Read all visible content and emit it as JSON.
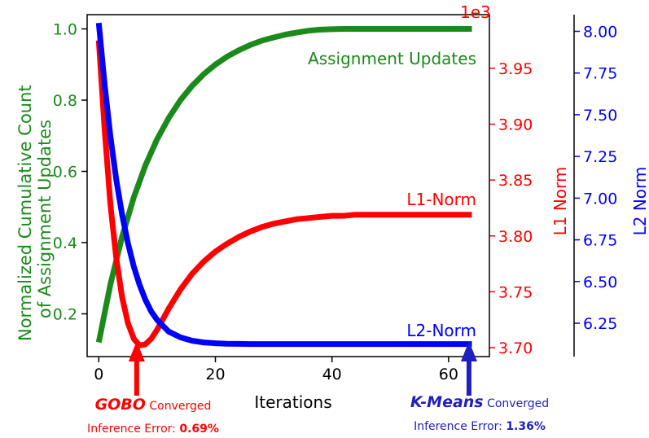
{
  "chart_data": {
    "type": "line",
    "xlabel": "Iterations",
    "x_ticks": [
      0,
      20,
      40,
      60
    ],
    "xlim": [
      -2,
      67
    ],
    "axes": {
      "left": {
        "label_line1": "Normalized Cumulative Count",
        "label_line2": "of Assignment Updates",
        "ylim": [
          0.08,
          1.04
        ],
        "ticks": [
          0.2,
          0.4,
          0.6,
          0.8,
          1.0
        ],
        "tick_labels": [
          "0.2",
          "0.4",
          "0.6",
          "0.8",
          "1.0"
        ],
        "color": "#1a8a1a"
      },
      "right1": {
        "label": "L1 Norm",
        "offset_text": "1e3",
        "ylim": [
          3.692,
          3.998
        ],
        "ticks": [
          3.7,
          3.75,
          3.8,
          3.85,
          3.9,
          3.95
        ],
        "tick_labels": [
          "3.70",
          "3.75",
          "3.80",
          "3.85",
          "3.90",
          "3.95"
        ],
        "color": "#ff0000"
      },
      "right2": {
        "label": "L2 Norm",
        "ylim": [
          6.05,
          8.1
        ],
        "ticks": [
          6.25,
          6.5,
          6.75,
          7.0,
          7.25,
          7.5,
          7.75,
          8.0
        ],
        "tick_labels": [
          "6.25",
          "6.50",
          "6.75",
          "7.00",
          "7.25",
          "7.50",
          "7.75",
          "8.00"
        ],
        "color": "#0000ff"
      }
    },
    "series": [
      {
        "name": "Assignment Updates",
        "axis": "left",
        "color": "#1a8a1a",
        "x": [
          0,
          2,
          4,
          6,
          8,
          10,
          12,
          14,
          16,
          18,
          20,
          22,
          24,
          26,
          28,
          30,
          32,
          34,
          36,
          38,
          40,
          42,
          44,
          46,
          48,
          50,
          52,
          54,
          56,
          58,
          60,
          62,
          64
        ],
        "y": [
          0.12,
          0.283,
          0.417,
          0.527,
          0.617,
          0.69,
          0.75,
          0.8,
          0.84,
          0.873,
          0.9,
          0.922,
          0.94,
          0.955,
          0.967,
          0.976,
          0.984,
          0.99,
          0.995,
          0.998,
          0.999,
          1.0,
          1.0,
          1.0,
          1.0,
          1.0,
          1.0,
          1.0,
          1.0,
          1.0,
          1.0,
          1.0,
          1.0
        ]
      },
      {
        "name": "L1-Norm",
        "axis": "right1",
        "color": "#ff0000",
        "x": [
          0,
          1,
          2,
          3,
          4,
          5,
          6,
          7,
          8,
          9,
          10,
          12,
          14,
          16,
          18,
          20,
          22,
          24,
          26,
          28,
          30,
          32,
          34,
          36,
          38,
          40,
          42,
          44,
          46,
          48,
          50,
          52,
          54,
          56,
          58,
          60,
          62,
          64
        ],
        "y": [
          3.975,
          3.895,
          3.828,
          3.78,
          3.745,
          3.722,
          3.708,
          3.702,
          3.703,
          3.708,
          3.716,
          3.735,
          3.752,
          3.766,
          3.777,
          3.786,
          3.793,
          3.799,
          3.804,
          3.808,
          3.811,
          3.813,
          3.815,
          3.816,
          3.817,
          3.818,
          3.818,
          3.819,
          3.819,
          3.819,
          3.819,
          3.819,
          3.819,
          3.819,
          3.819,
          3.819,
          3.819,
          3.819
        ]
      },
      {
        "name": "L2-Norm",
        "axis": "right2",
        "color": "#0000ff",
        "x": [
          0,
          1,
          2,
          3,
          4,
          5,
          6,
          7,
          8,
          9,
          10,
          12,
          14,
          16,
          18,
          20,
          22,
          24,
          26,
          28,
          30,
          32,
          34,
          36,
          38,
          40,
          44,
          48,
          52,
          56,
          60,
          64
        ],
        "y": [
          8.05,
          7.68,
          7.37,
          7.11,
          6.9,
          6.73,
          6.59,
          6.48,
          6.39,
          6.32,
          6.27,
          6.2,
          6.165,
          6.145,
          6.135,
          6.13,
          6.127,
          6.126,
          6.125,
          6.125,
          6.125,
          6.125,
          6.125,
          6.125,
          6.125,
          6.125,
          6.125,
          6.125,
          6.125,
          6.125,
          6.125,
          6.125
        ]
      }
    ],
    "annotations": {
      "gobo": {
        "name": "GOBO",
        "status": "Converged",
        "error_label": "Inference Error:",
        "error_value": "0.69%",
        "color": "#ff0000",
        "x": 6.5
      },
      "kmeans": {
        "name": "K-Means",
        "status": "Converged",
        "error_label": "Inference Error:",
        "error_value": "1.36%",
        "color": "#1f1fbf",
        "x": 63.5
      }
    }
  }
}
